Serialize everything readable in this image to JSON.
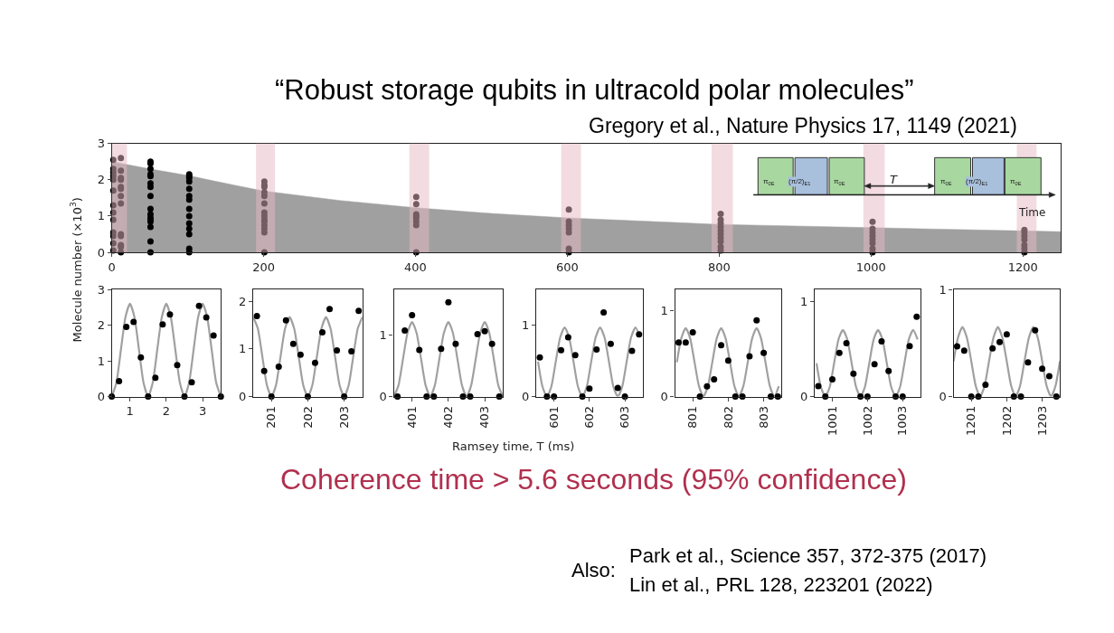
{
  "chart_data": [
    {
      "type": "scatter",
      "title": "“Robust storage qubits in ultracold polar molecules”",
      "subtitle": "Gregory et al., Nature Physics 17, 1149 (2021)",
      "ylabel": "Molecule number (×10$^{3}$)",
      "annotations": [
        "π$_{0E}$",
        "(π/2)$_{E1}$",
        "π$_{0E}$",
        "T",
        "π$_{0E}$",
        "(π/2)$_{E1}$",
        "π$_{0E}$",
        "Time",
        "Coherence time > 5.6 seconds (95% confidence)",
        "Also:",
        "Park et al., Science 357, 372-375 (2017)",
        "Lin et al., PRL 128, 223201 (2022)"
      ],
      "xlim": [
        0,
        1250
      ],
      "xticks": [
        0,
        200,
        400,
        600,
        800,
        1000,
        1200
      ],
      "ylim": [
        0,
        3
      ],
      "yticks": [
        0,
        1,
        2,
        3
      ],
      "bands": [
        {
          "axis": "x",
          "from": 0,
          "to": 20,
          "color": "#e6b8c4"
        },
        {
          "axis": "x",
          "from": 190,
          "to": 215,
          "color": "#e6b8c4"
        },
        {
          "axis": "x",
          "from": 392,
          "to": 418,
          "color": "#e6b8c4"
        },
        {
          "axis": "x",
          "from": 592,
          "to": 618,
          "color": "#e6b8c4"
        },
        {
          "axis": "x",
          "from": 790,
          "to": 818,
          "color": "#e6b8c4"
        },
        {
          "axis": "x",
          "from": 990,
          "to": 1018,
          "color": "#e6b8c4"
        },
        {
          "axis": "x",
          "from": 1192,
          "to": 1218,
          "color": "#e6b8c4"
        }
      ],
      "series": [
        {
          "type": "area",
          "color": "#a0a0a0",
          "x": [
            0,
            50,
            100,
            150,
            200,
            300,
            400,
            500,
            600,
            800,
            1000,
            1200,
            1250
          ],
          "values": [
            2.5,
            2.3,
            2.12,
            1.9,
            1.69,
            1.43,
            1.23,
            1.07,
            0.95,
            0.77,
            0.68,
            0.59,
            0.57
          ]
        },
        {
          "color": "#000000",
          "marker": "circle",
          "x": [
            2,
            2,
            2,
            2,
            2,
            2,
            2,
            2,
            2,
            2,
            2,
            2,
            2,
            12,
            12,
            12,
            12,
            12,
            12,
            12,
            12,
            12,
            12,
            12,
            12,
            12,
            51,
            51,
            51,
            51,
            51,
            51,
            51,
            51,
            51,
            51,
            51,
            51,
            51,
            51,
            51,
            51,
            102,
            102,
            102,
            102,
            102,
            102,
            102,
            102,
            102,
            102,
            102,
            102,
            102,
            102,
            201,
            201,
            201,
            201,
            201,
            201,
            201,
            201,
            201,
            201,
            201,
            201,
            201,
            201,
            401,
            401,
            401,
            401,
            401,
            401,
            401,
            401,
            602,
            602,
            602,
            602,
            602,
            602,
            602,
            802,
            802,
            802,
            802,
            802,
            802,
            802,
            802,
            802,
            802,
            1002,
            1002,
            1002,
            1002,
            1002,
            1002,
            1002,
            1002,
            1202,
            1202,
            1202,
            1202,
            1202,
            1202,
            1202
          ],
          "values": [
            2.55,
            2.3,
            2.2,
            2.1,
            2.0,
            1.7,
            1.3,
            1.1,
            0.9,
            0.55,
            0.45,
            0.25,
            0.05,
            2.6,
            2.25,
            2.05,
            2.0,
            1.8,
            1.75,
            1.55,
            1.35,
            0.5,
            0.45,
            0.2,
            0.15,
            0.0,
            2.5,
            2.45,
            2.3,
            2.15,
            2.1,
            1.9,
            1.8,
            1.55,
            1.2,
            1.05,
            0.95,
            0.9,
            0.85,
            0.7,
            0.3,
            0.0,
            2.15,
            2.1,
            2.05,
            1.95,
            1.75,
            1.55,
            1.45,
            1.2,
            1.0,
            0.8,
            0.65,
            0.5,
            0.1,
            0.0,
            1.95,
            1.85,
            1.8,
            1.65,
            1.55,
            1.35,
            1.1,
            1.0,
            0.9,
            0.85,
            0.75,
            0.65,
            0.55,
            0.0,
            1.53,
            1.33,
            1.05,
            1.0,
            0.95,
            0.85,
            0.75,
            0.0,
            1.18,
            0.85,
            0.75,
            0.65,
            0.55,
            0.1,
            0.0,
            1.06,
            0.9,
            0.8,
            0.7,
            0.6,
            0.5,
            0.4,
            0.3,
            0.15,
            0.05,
            0.84,
            0.65,
            0.55,
            0.45,
            0.35,
            0.25,
            0.1,
            0.0,
            0.62,
            0.55,
            0.45,
            0.35,
            0.2,
            0.1,
            0.0
          ]
        }
      ]
    },
    {
      "type": "scatter",
      "xlim": [
        0.5,
        3.5
      ],
      "xticks": [
        1,
        2,
        3
      ],
      "ylim": [
        0,
        3
      ],
      "yticks": [
        0,
        1,
        2,
        3
      ],
      "series": [
        {
          "type": "line",
          "color": "#a0a0a0",
          "x": [
            0.5,
            0.625,
            0.75,
            0.875,
            1,
            1.125,
            1.25,
            1.375,
            1.5,
            1.625,
            1.75,
            1.875,
            2,
            2.125,
            2.25,
            2.375,
            2.5,
            2.625,
            2.75,
            2.875,
            3,
            3.125,
            3.25,
            3.375,
            3.5
          ],
          "values": [
            0,
            0.38,
            1.3,
            2.22,
            2.6,
            2.22,
            1.3,
            0.38,
            0,
            0.38,
            1.3,
            2.22,
            2.6,
            2.22,
            1.3,
            0.38,
            0,
            0.38,
            1.3,
            2.22,
            2.6,
            2.22,
            1.3,
            0.38,
            0
          ]
        },
        {
          "color": "#000000",
          "marker": "circle",
          "x": [
            0.5,
            0.7,
            0.9,
            1.1,
            1.3,
            1.5,
            1.7,
            1.9,
            2.1,
            2.3,
            2.5,
            2.7,
            2.9,
            3.1,
            3.3,
            3.5
          ],
          "values": [
            0,
            0.43,
            1.95,
            2.09,
            1.1,
            0,
            0.53,
            2.02,
            2.3,
            0.88,
            0,
            0.4,
            2.54,
            2.22,
            1.71,
            0
          ]
        }
      ]
    },
    {
      "type": "scatter",
      "xlim": [
        200.5,
        203.5
      ],
      "xticks": [
        201,
        202,
        203
      ],
      "ylim": [
        0,
        2.25
      ],
      "yticks": [
        0,
        1,
        2
      ],
      "series": [
        {
          "type": "line",
          "color": "#a0a0a0",
          "x": [
            200.5,
            200.625,
            200.75,
            200.875,
            201,
            201.125,
            201.25,
            201.375,
            201.5,
            201.625,
            201.75,
            201.875,
            202,
            202.125,
            202.25,
            202.375,
            202.5,
            202.625,
            202.75,
            202.875,
            203,
            203.125,
            203.25,
            203.375,
            203.5
          ],
          "values": [
            1.67,
            1.43,
            0.84,
            0.24,
            0,
            0.24,
            0.84,
            1.43,
            1.67,
            1.43,
            0.84,
            0.24,
            0,
            0.24,
            0.84,
            1.43,
            1.67,
            1.43,
            0.84,
            0.24,
            0,
            0.24,
            0.84,
            1.43,
            1.67
          ]
        },
        {
          "color": "#000000",
          "marker": "circle",
          "x": [
            200.6,
            200.8,
            201.0,
            201.2,
            201.4,
            201.6,
            201.8,
            202.0,
            202.2,
            202.4,
            202.6,
            202.8,
            203.0,
            203.2,
            203.4
          ],
          "values": [
            1.69,
            0.54,
            0,
            0.63,
            1.6,
            1.11,
            0.88,
            0,
            0.71,
            1.35,
            1.84,
            0.97,
            0,
            0.95,
            1.8
          ]
        }
      ]
    },
    {
      "type": "scatter",
      "xlim": [
        400.5,
        403.5
      ],
      "xticks": [
        401,
        402,
        403
      ],
      "ylim": [
        0,
        1.75
      ],
      "yticks": [
        0,
        1
      ],
      "series": [
        {
          "type": "line",
          "color": "#a0a0a0",
          "x": [
            400.5,
            400.625,
            400.75,
            400.875,
            401,
            401.125,
            401.25,
            401.375,
            401.5,
            401.625,
            401.75,
            401.875,
            402,
            402.125,
            402.25,
            402.375,
            402.5,
            402.625,
            402.75,
            402.875,
            403,
            403.125,
            403.25,
            403.375,
            403.5
          ],
          "values": [
            0,
            0.18,
            0.61,
            1.04,
            1.22,
            1.04,
            0.61,
            0.18,
            0,
            0.18,
            0.61,
            1.04,
            1.22,
            1.04,
            0.61,
            0.18,
            0,
            0.18,
            0.61,
            1.04,
            1.22,
            1.04,
            0.61,
            0.18,
            0
          ]
        },
        {
          "color": "#000000",
          "marker": "circle",
          "x": [
            400.6,
            400.8,
            401.0,
            401.2,
            401.4,
            401.6,
            401.8,
            402.0,
            402.2,
            402.4,
            402.6,
            402.8,
            403.0,
            403.2,
            403.4
          ],
          "values": [
            0,
            1.08,
            1.33,
            0.76,
            0,
            0,
            0.78,
            1.54,
            0.86,
            0,
            0,
            1.02,
            1.07,
            0.86,
            0
          ]
        }
      ]
    },
    {
      "type": "scatter",
      "xlabel": "Ramsey time, T (ms)",
      "xlim": [
        600.5,
        603.5
      ],
      "xticks": [
        601,
        602,
        603
      ],
      "ylim": [
        0,
        1.5
      ],
      "yticks": [
        0,
        1
      ],
      "series": [
        {
          "type": "line",
          "color": "#a0a0a0",
          "x": [
            600.55,
            600.675,
            600.8,
            600.925,
            601.05,
            601.175,
            601.3,
            601.425,
            601.55,
            601.675,
            601.8,
            601.925,
            602.05,
            602.175,
            602.3,
            602.425,
            602.55,
            602.675,
            602.8,
            602.925,
            603.05,
            603.175,
            603.3,
            603.425
          ],
          "values": [
            0.49,
            0.14,
            0,
            0.14,
            0.49,
            0.83,
            0.97,
            0.83,
            0.49,
            0.14,
            0,
            0.14,
            0.49,
            0.83,
            0.97,
            0.83,
            0.49,
            0.14,
            0,
            0.14,
            0.49,
            0.83,
            0.97,
            0.83
          ]
        },
        {
          "color": "#000000",
          "marker": "circle",
          "x": [
            600.6,
            600.8,
            601.0,
            601.2,
            601.4,
            601.6,
            601.8,
            602.0,
            602.2,
            602.4,
            602.6,
            602.8,
            603.0,
            603.2,
            603.4
          ],
          "values": [
            0.55,
            0,
            0,
            0.65,
            0.83,
            0.58,
            0,
            0.11,
            0.66,
            1.18,
            0.74,
            0.12,
            0,
            0.64,
            0.87
          ]
        }
      ]
    },
    {
      "type": "scatter",
      "xlim": [
        800.5,
        803.5
      ],
      "xticks": [
        801,
        802,
        803
      ],
      "ylim": [
        0,
        1.25
      ],
      "yticks": [
        0,
        1
      ],
      "series": [
        {
          "type": "line",
          "color": "#a0a0a0",
          "x": [
            800.55,
            800.675,
            800.8,
            800.925,
            801.05,
            801.175,
            801.3,
            801.425,
            801.55,
            801.675,
            801.8,
            801.925,
            802.05,
            802.175,
            802.3,
            802.425,
            802.55,
            802.675,
            802.8,
            802.925,
            803.05,
            803.175,
            803.3,
            803.425
          ],
          "values": [
            0.4,
            0.68,
            0.8,
            0.68,
            0.4,
            0.12,
            0,
            0.12,
            0.4,
            0.68,
            0.8,
            0.68,
            0.4,
            0.12,
            0,
            0.12,
            0.4,
            0.68,
            0.8,
            0.68,
            0.4,
            0.12,
            0,
            0.12
          ]
        },
        {
          "color": "#000000",
          "marker": "circle",
          "x": [
            800.6,
            800.8,
            801.0,
            801.2,
            801.4,
            801.6,
            801.8,
            802.0,
            802.2,
            802.4,
            802.6,
            802.8,
            803.0,
            803.2,
            803.4
          ],
          "values": [
            0.63,
            0.63,
            0.75,
            0,
            0.12,
            0.2,
            0.6,
            0.42,
            0,
            0,
            0.47,
            0.89,
            0.51,
            0,
            0
          ]
        }
      ]
    },
    {
      "type": "scatter",
      "xlim": [
        1000.5,
        1003.5
      ],
      "xticks": [
        1001,
        1002,
        1003
      ],
      "ylim": [
        0,
        1.125
      ],
      "yticks": [
        0,
        1
      ],
      "series": [
        {
          "type": "line",
          "color": "#a0a0a0",
          "x": [
            1000.55,
            1000.675,
            1000.8,
            1000.925,
            1001.05,
            1001.175,
            1001.3,
            1001.425,
            1001.55,
            1001.675,
            1001.8,
            1001.925,
            1002.05,
            1002.175,
            1002.3,
            1002.425,
            1002.55,
            1002.675,
            1002.8,
            1002.925,
            1003.05,
            1003.175,
            1003.3,
            1003.425
          ],
          "values": [
            0.35,
            0.1,
            0,
            0.1,
            0.35,
            0.6,
            0.7,
            0.6,
            0.35,
            0.1,
            0,
            0.1,
            0.35,
            0.6,
            0.7,
            0.6,
            0.35,
            0.1,
            0,
            0.1,
            0.35,
            0.6,
            0.7,
            0.6
          ]
        },
        {
          "color": "#000000",
          "marker": "circle",
          "x": [
            1000.6,
            1000.8,
            1001.0,
            1001.2,
            1001.4,
            1001.6,
            1001.8,
            1002.0,
            1002.2,
            1002.4,
            1002.6,
            1002.8,
            1003.0,
            1003.2,
            1003.4
          ],
          "values": [
            0.11,
            0,
            0.18,
            0.46,
            0.56,
            0.24,
            0,
            0,
            0.34,
            0.58,
            0.27,
            0,
            0,
            0.53,
            0.84
          ]
        }
      ]
    },
    {
      "type": "scatter",
      "xlim": [
        1200.5,
        1203.5
      ],
      "xticks": [
        1201,
        1202,
        1203
      ],
      "ylim": [
        0,
        1
      ],
      "yticks": [
        0,
        1
      ],
      "series": [
        {
          "type": "line",
          "color": "#a0a0a0",
          "x": [
            1200.5,
            1200.625,
            1200.75,
            1200.875,
            1201,
            1201.125,
            1201.25,
            1201.375,
            1201.5,
            1201.625,
            1201.75,
            1201.875,
            1202,
            1202.125,
            1202.25,
            1202.375,
            1202.5,
            1202.625,
            1202.75,
            1202.875,
            1203,
            1203.125,
            1203.25,
            1203.375,
            1203.5
          ],
          "values": [
            0.33,
            0.55,
            0.65,
            0.55,
            0.33,
            0.1,
            0,
            0.1,
            0.33,
            0.55,
            0.65,
            0.55,
            0.33,
            0.1,
            0,
            0.1,
            0.33,
            0.55,
            0.65,
            0.55,
            0.33,
            0.1,
            0,
            0.1,
            0.33
          ]
        },
        {
          "color": "#000000",
          "marker": "circle",
          "x": [
            1200.6,
            1200.8,
            1201.0,
            1201.2,
            1201.4,
            1201.6,
            1201.8,
            1202.0,
            1202.2,
            1202.4,
            1202.6,
            1202.8,
            1203.0,
            1203.2,
            1203.4
          ],
          "values": [
            0.47,
            0.43,
            0,
            0,
            0.11,
            0.45,
            0.51,
            0.58,
            0,
            0,
            0.32,
            0.62,
            0.26,
            0.19,
            0
          ]
        }
      ]
    }
  ]
}
